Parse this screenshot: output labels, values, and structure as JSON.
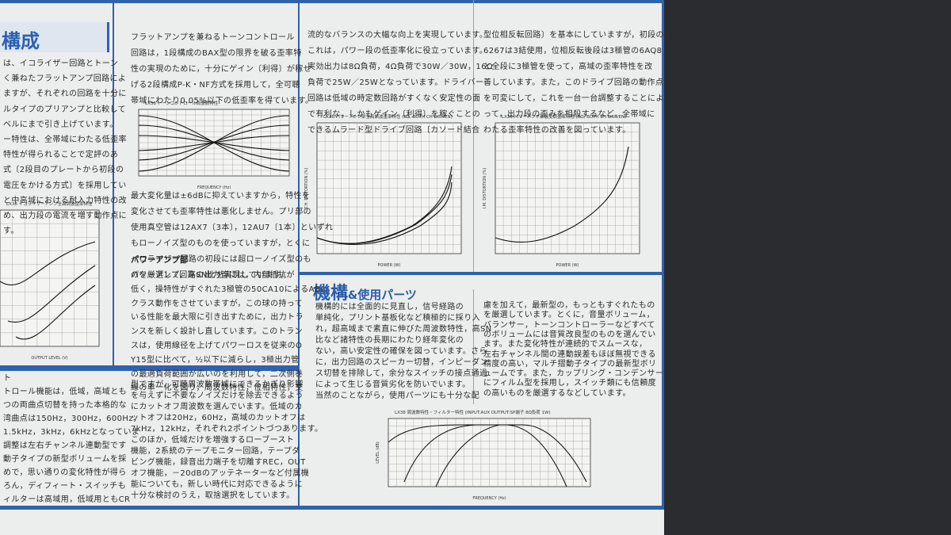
{
  "sections": {
    "top_left_heading": "構成",
    "mechanism_heading": "機構",
    "mechanism_heading_amp": "&",
    "mechanism_heading_rest": "使用パーツ",
    "power_amp_heading": "パワーアンプ部"
  },
  "columns": {
    "c1_top": [
      "は、イコライザー回路とトーン",
      "く兼ねたフラットアンプ回路によ",
      "ますが、それぞれの回路を十分に",
      "ルタイプのプリアンプと比較して",
      "ベルにまで引き上げています。",
      "ー特性は、全帯域にわたる低歪率",
      "特性が得られることで定評のあ",
      "式〔2段目のプレートから初段の",
      "電圧をかける方式〕を採用してい",
      "と中高域における耐入力特性の改",
      "め、出力段の電流を増す動作点に",
      "す。"
    ],
    "c2_top": [
      "フラットアンプを兼ねるトーンコントロール",
      "回路は，1段構成のBAX型の限界を破る歪率特",
      "性の実現のために，十分にゲイン〔利得〕が稼せ",
      "げる2段構成P-K・NF方式を採用して，全可聴",
      "帯域にわたり0.05%以下の低歪率を得ています。"
    ],
    "c2_mid": [
      "最大変化量は±6dBに抑えていますから，特性を",
      "変化させても歪率特性は悪化しません。プリ部の",
      "使用真空管は12AX7〔3本〕，12AU7〔1本〕といずれ",
      "もローノイズ型のものを使っていますが，とくに",
      "イコライザー回路の初段には超ローノイズ型のも",
      "のを厳選して，高SN比を実現しています。"
    ],
    "c2_power": [
      "パワーアンプ回路の出力管には，内部抵抗が",
      "低く，操特性がすぐれた3極管の50CA10によるAB₁",
      "クラス動作をさせていますが，この球の持って",
      "いる性能を最大限に引き出すために，出力トラ",
      "ンスを新しく設計し直しています。このトラン",
      "スは，使用線径を上げてパワーロスを従来のO",
      "Y15型に比べて，½以下に減らし，3極出力管",
      "の最適負荷範囲が広いのを利用して，二次側巻",
      "線の単一化を図り，周波数特性，位相特性，交"
    ],
    "c3_top": [
      "流的なバランスの大幅な向上を実現しています。",
      "これは，パワー段の低歪率化に役立っています。",
      "実効出力は8Ω負荷，4Ω負荷で30W／30W，16Ω",
      "負荷で25W／25Wとなっています。ドライバー",
      "回路は低域の時定数回路がすくなく安定性の面",
      "で有利な，しかもゲイン〔利得〕を稼ぐことの",
      "できるムラード型ドライブ回路〔カソード結合"
    ],
    "c4_top": [
      "型位相反転回路〕を基本にしていますが，初段の",
      "6267は3結使用，位相反転後段は3極管の6AQ8",
      "と全段に3極管を使って，高域の歪率特性を改",
      "善しています。また，このドライブ回路の動作点",
      "を可変にして，これを一台一台調整することによ",
      "って，出力段の歪みを相殺するなど，全帯域に",
      "わたる歪率特性の改善を図っています。"
    ],
    "c3_low": [
      "機構的には全面的に見直し，信号経路の",
      "単純化，プリント基板化など積極的に採り入",
      "れ，超高域まで素直に伸びた周波数特性，高SN",
      "比など諸特性の長期にわたり経年変化の",
      "ない，高い安定性の確保を図っています。さら",
      "に，出力回路のスピーカー切替，インピーダン",
      "ス切替を排除して，余分なスイッチの接点通過",
      "によって生じる音質劣化を防いでいます。",
      "当然のことながら，使用パーツにも十分な配"
    ],
    "c4_low": [
      "慮を加えて，最新型の，もっともすぐれたもの",
      "を厳選しています。とくに，音量ボリューム，",
      "バランサー，トーンコントローラーなどすべて",
      "のボリュームには音質改良型のものを選んでい",
      "ます。また変化特性が連続的でスムースな，",
      "左右チャンネル間の連動誤差もほぼ無視できる",
      "精度の高い，マルチ摺動子タイプの最新型ボリ",
      "ュームです。また，カップリング・コンデンサー",
      "にフィルム型を採用し，スイッチ類にも信頼度",
      "の高いものを厳選するなどしています。"
    ],
    "c1_low": [
      "ト",
      "トロール機能は，低域，高域とも",
      "つの両曲点切替を持った本格的な",
      "湾曲点は150Hz，300Hz，600Hz，",
      "1.5kHz，3kHz，6kHzとなっていま",
      "調整は左右チャンネル連動型です",
      "動子タイプの新型ボリュームを採",
      "めで，思い通りの変化特性が得ら",
      "ろん，ディフィート・スイッチも",
      "ィルターは高域用，低域用ともCR"
    ],
    "c2_low": [
      "型ですが，可聴周波数帯域にできるかぎり影響",
      "を与えずに不要なノイズだけを除去できるよう",
      "にカットオフ周波数を選んでいます。低域のカ",
      "ットオフは20Hz，60Hz，高域のカットオフは",
      "7kHz，12kHz，それぞれ2ポイントづつあります。",
      "このほか，低域だけを増強するローブースト",
      "機能，2系統のテープモニター回路，テープダ",
      "ビング機能，録音出力端子を切離すREC，OUT",
      "オフ機能，－20dBのアッテネーターなど付属機",
      "能についても，新しい時代に対応できるように",
      "十分な検討のうえ，取捨選択をしています。"
    ]
  },
  "figures": [
    {
      "title": "LX38 イコライザーアンプ全高調波歪率特性",
      "x_label": "OUTPUT LEVEL (V)"
    },
    {
      "title": "LX38 トーンコントロール周波数特性",
      "x_label": "FREQUENCY (Hz)"
    },
    {
      "title": "LX38 パワーアンプ部全高調波歪率特性 (8Ω, BOTH CH DRIVEN)",
      "x_label": "POWER (W)",
      "y_label": "T.H. DISTORTION (%)"
    },
    {
      "title": "LX38 パワーアンプ部混変調歪率特性 (8Ω, BOTH CH DRIVEN)",
      "x_label": "POWER (W)",
      "y_label": "I.M. DISTORTION (%)"
    },
    {
      "title": "LX38 周波数特性・フィルター特性 (INPUT:AUX OUTPUT:SP端子 8Ω負荷 1W)",
      "x_label": "FREQUENCY (Hz)",
      "y_label": "LEVEL (dB)"
    }
  ]
}
